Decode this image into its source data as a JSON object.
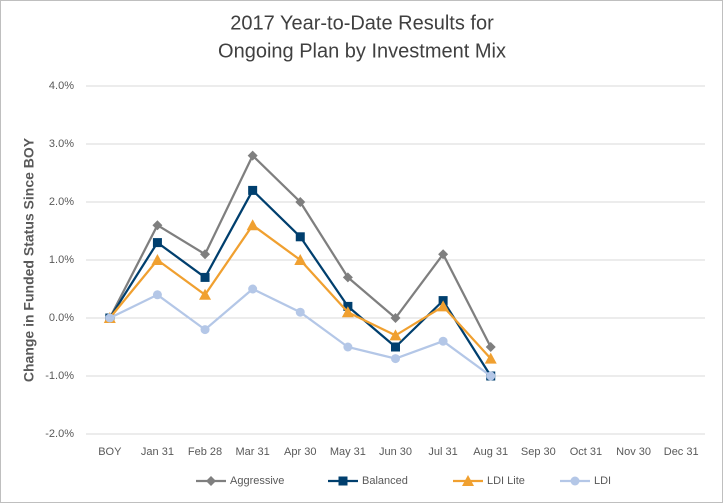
{
  "chart_data": {
    "type": "line",
    "title": [
      "2017 Year-to-Date Results for",
      "Ongoing Plan by Investment Mix"
    ],
    "y_label": "Change in Funded Status Since BOY",
    "categories": [
      "BOY",
      "Jan 31",
      "Feb 28",
      "Mar 31",
      "Apr 30",
      "May 31",
      "Jun 30",
      "Jul 31",
      "Aug 31",
      "Sep 30",
      "Oct 31",
      "Nov 30",
      "Dec 31"
    ],
    "series": [
      {
        "name": "Aggressive",
        "color": "#7f7f7f",
        "marker": "diamond",
        "values": [
          0,
          1.6,
          1.1,
          2.8,
          2.0,
          0.7,
          0.0,
          1.1,
          -0.5,
          null,
          null,
          null,
          null
        ]
      },
      {
        "name": "Balanced",
        "color": "#003f6e",
        "marker": "square",
        "values": [
          0,
          1.3,
          0.7,
          2.2,
          1.4,
          0.2,
          -0.5,
          0.3,
          -1.0,
          null,
          null,
          null,
          null
        ]
      },
      {
        "name": "LDI Lite",
        "color": "#f0a030",
        "marker": "triangle",
        "values": [
          0,
          1.0,
          0.4,
          1.6,
          1.0,
          0.1,
          -0.3,
          0.2,
          -0.7,
          null,
          null,
          null,
          null
        ]
      },
      {
        "name": "LDI",
        "color": "#b4c7e7",
        "marker": "circle",
        "values": [
          0,
          0.4,
          -0.2,
          0.5,
          0.1,
          -0.5,
          -0.7,
          -0.4,
          -1.0,
          null,
          null,
          null,
          null
        ]
      }
    ],
    "ylim": [
      -2,
      4
    ],
    "yticks": [
      {
        "value": -2,
        "label": "-2.0%"
      },
      {
        "value": -1,
        "label": "-1.0%"
      },
      {
        "value": 0,
        "label": "0.0%"
      },
      {
        "value": 1,
        "label": "1.0%"
      },
      {
        "value": 2,
        "label": "2.0%"
      },
      {
        "value": 3,
        "label": "3.0%"
      },
      {
        "value": 4,
        "label": "4.0%"
      }
    ],
    "grid": true,
    "legend": "bottom"
  }
}
